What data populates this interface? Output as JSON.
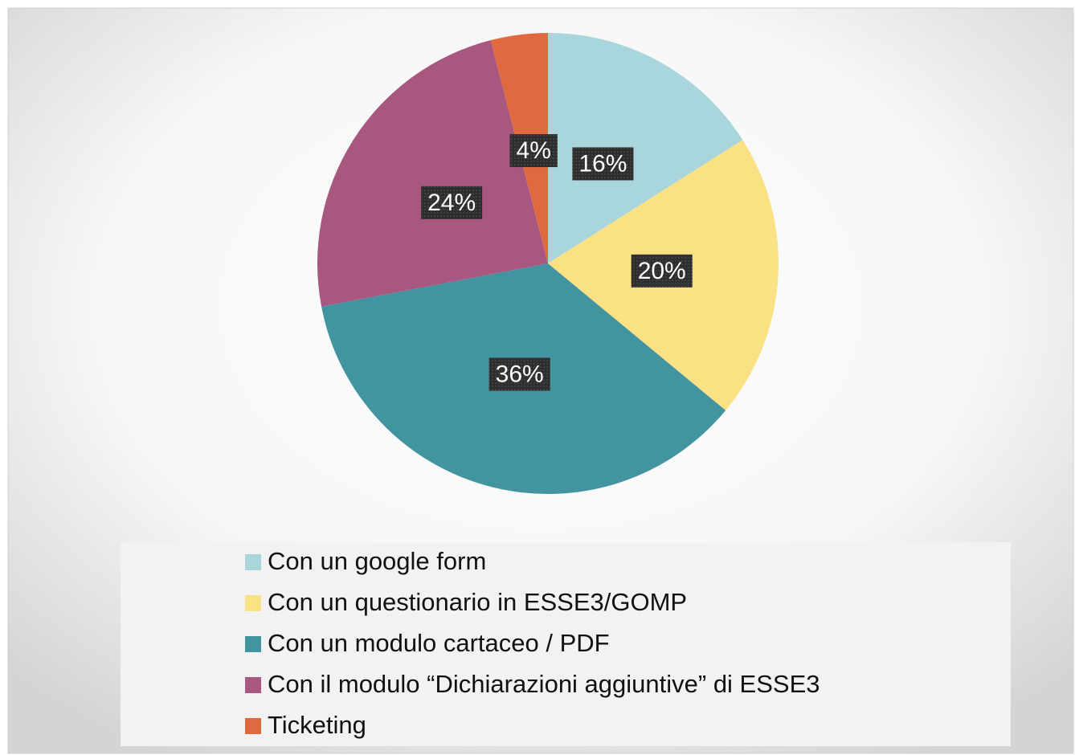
{
  "chart_data": {
    "type": "pie",
    "categories": [
      "Con un google form",
      "Con un questionario in ESSE3/GOMP",
      "Con un modulo cartaceo / PDF",
      "Con il modulo “Dichiarazioni aggiuntive” di ESSE3",
      "Ticketing"
    ],
    "values": [
      16,
      20,
      36,
      24,
      4
    ],
    "value_labels": [
      "16%",
      "20%",
      "36%",
      "24%",
      "4%"
    ],
    "colors": [
      "#a9d5dc",
      "#fae184",
      "#4295a0",
      "#a8577f",
      "#e06a40"
    ],
    "legend": "bottom"
  }
}
